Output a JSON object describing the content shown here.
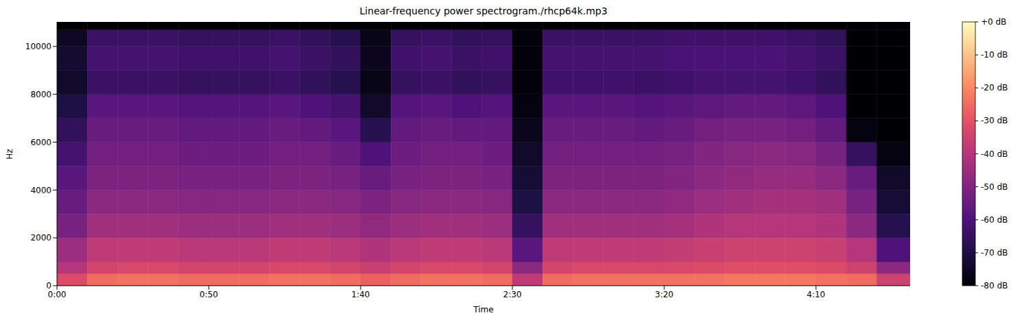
{
  "chart_data": {
    "type": "heatmap",
    "title": "Linear-frequency power spectrogram./rhcp64k.mp3",
    "x_label": "Time",
    "y_label": "Hz",
    "xlim": [
      0,
      281
    ],
    "xticks": [
      {
        "value": 0,
        "label": "0:00"
      },
      {
        "value": 50,
        "label": "0:50"
      },
      {
        "value": 100,
        "label": "1:40"
      },
      {
        "value": 150,
        "label": "2:30"
      },
      {
        "value": 200,
        "label": "3:20"
      },
      {
        "value": 250,
        "label": "4:10"
      }
    ],
    "ylim": [
      0,
      11025
    ],
    "yticks": [
      0,
      2000,
      4000,
      6000,
      8000,
      10000
    ],
    "time_bins": [
      0,
      10,
      20,
      30,
      40,
      50,
      60,
      70,
      80,
      90,
      100,
      110,
      120,
      130,
      140,
      150,
      160,
      170,
      180,
      190,
      200,
      210,
      220,
      230,
      240,
      250,
      260,
      270,
      281
    ],
    "freq_bins": [
      0,
      500,
      1000,
      2000,
      3000,
      4000,
      5000,
      6000,
      7000,
      8000,
      9000,
      10000,
      10700,
      11025
    ],
    "cells": [
      [
        -32,
        -25,
        -24,
        -24,
        -25,
        -25,
        -25,
        -24,
        -24,
        -25,
        -27,
        -25,
        -24,
        -24,
        -25,
        -38,
        -25,
        -24,
        -24,
        -24,
        -24,
        -24,
        -23,
        -23,
        -23,
        -24,
        -25,
        -35
      ],
      [
        -40,
        -34,
        -33,
        -33,
        -34,
        -34,
        -34,
        -33,
        -33,
        -34,
        -36,
        -34,
        -33,
        -33,
        -34,
        -48,
        -34,
        -33,
        -33,
        -33,
        -33,
        -32,
        -31,
        -31,
        -31,
        -32,
        -35,
        -48
      ],
      [
        -45,
        -38,
        -38,
        -38,
        -39,
        -39,
        -39,
        -38,
        -38,
        -39,
        -41,
        -39,
        -38,
        -38,
        -39,
        -58,
        -38,
        -38,
        -38,
        -38,
        -37,
        -36,
        -35,
        -35,
        -35,
        -36,
        -40,
        -60
      ],
      [
        -52,
        -44,
        -44,
        -44,
        -45,
        -45,
        -45,
        -44,
        -44,
        -45,
        -47,
        -45,
        -44,
        -44,
        -45,
        -65,
        -44,
        -44,
        -44,
        -44,
        -43,
        -41,
        -40,
        -40,
        -40,
        -41,
        -48,
        -68
      ],
      [
        -55,
        -48,
        -48,
        -48,
        -49,
        -49,
        -49,
        -48,
        -48,
        -49,
        -51,
        -49,
        -48,
        -48,
        -49,
        -70,
        -48,
        -48,
        -48,
        -48,
        -47,
        -45,
        -44,
        -43,
        -43,
        -44,
        -52,
        -72
      ],
      [
        -58,
        -51,
        -51,
        -51,
        -52,
        -52,
        -52,
        -51,
        -51,
        -52,
        -55,
        -52,
        -51,
        -51,
        -52,
        -72,
        -51,
        -51,
        -51,
        -51,
        -50,
        -48,
        -47,
        -46,
        -46,
        -48,
        -55,
        -74
      ],
      [
        -62,
        -53,
        -53,
        -53,
        -54,
        -54,
        -54,
        -53,
        -53,
        -55,
        -60,
        -54,
        -53,
        -53,
        -54,
        -74,
        -53,
        -53,
        -53,
        -53,
        -52,
        -50,
        -49,
        -48,
        -49,
        -52,
        -65,
        -78
      ],
      [
        -66,
        -55,
        -55,
        -55,
        -56,
        -56,
        -56,
        -55,
        -56,
        -58,
        -68,
        -56,
        -55,
        -56,
        -56,
        -76,
        -55,
        -55,
        -55,
        -56,
        -55,
        -53,
        -52,
        -52,
        -53,
        -56,
        -78,
        -80
      ],
      [
        -70,
        -58,
        -58,
        -58,
        -59,
        -59,
        -59,
        -58,
        -60,
        -62,
        -74,
        -59,
        -58,
        -60,
        -59,
        -78,
        -58,
        -58,
        -58,
        -59,
        -58,
        -57,
        -56,
        -56,
        -57,
        -60,
        -80,
        -80
      ],
      [
        -74,
        -64,
        -64,
        -64,
        -65,
        -65,
        -65,
        -64,
        -66,
        -68,
        -77,
        -65,
        -64,
        -66,
        -65,
        -79,
        -63,
        -63,
        -63,
        -64,
        -63,
        -62,
        -62,
        -62,
        -63,
        -66,
        -80,
        -80
      ],
      [
        -73,
        -62,
        -62,
        -62,
        -63,
        -63,
        -63,
        -62,
        -64,
        -66,
        -76,
        -63,
        -62,
        -64,
        -63,
        -79,
        -62,
        -62,
        -62,
        -62,
        -61,
        -61,
        -61,
        -61,
        -62,
        -64,
        -80,
        -80
      ],
      [
        -75,
        -64,
        -64,
        -64,
        -65,
        -65,
        -65,
        -64,
        -66,
        -68,
        -77,
        -65,
        -64,
        -66,
        -65,
        -79,
        -64,
        -64,
        -64,
        -64,
        -63,
        -63,
        -63,
        -63,
        -64,
        -66,
        -80,
        -80
      ],
      [
        -80,
        -80,
        -80,
        -80,
        -80,
        -80,
        -80,
        -80,
        -80,
        -80,
        -80,
        -80,
        -80,
        -80,
        -80,
        -80,
        -80,
        -80,
        -80,
        -80,
        -80,
        -80,
        -80,
        -80,
        -80,
        -80,
        -80,
        -80
      ]
    ],
    "colorbar": {
      "range": [
        -80,
        0
      ],
      "ticks": [
        {
          "value": 0,
          "label": "+0 dB"
        },
        {
          "value": -10,
          "label": "-10 dB"
        },
        {
          "value": -20,
          "label": "-20 dB"
        },
        {
          "value": -30,
          "label": "-30 dB"
        },
        {
          "value": -40,
          "label": "-40 dB"
        },
        {
          "value": -50,
          "label": "-50 dB"
        },
        {
          "value": -60,
          "label": "-60 dB"
        },
        {
          "value": -70,
          "label": "-70 dB"
        },
        {
          "value": -80,
          "label": "-80 dB"
        }
      ]
    }
  }
}
